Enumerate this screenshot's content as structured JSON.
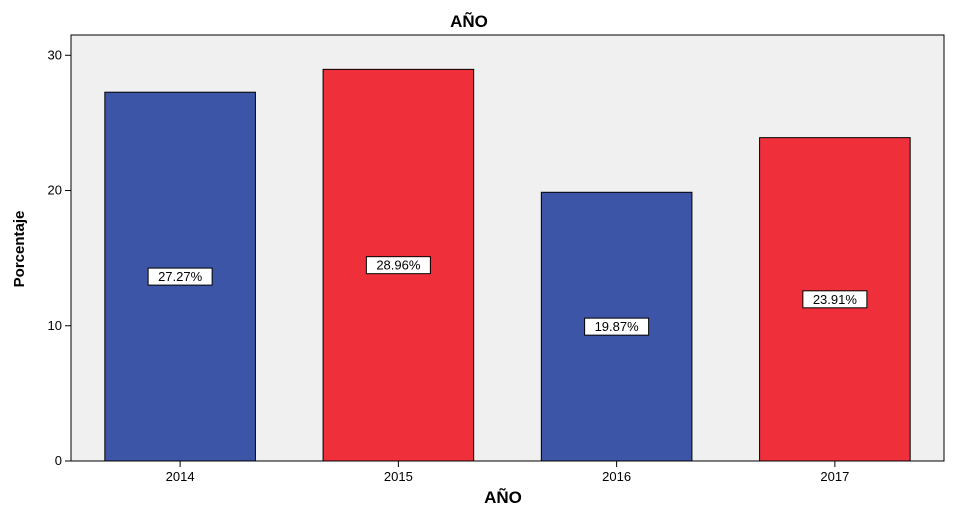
{
  "chart_data": {
    "type": "bar",
    "title": "AÑO",
    "xlabel": "AÑO",
    "ylabel": "Porcentaje",
    "categories": [
      "2014",
      "2015",
      "2016",
      "2017"
    ],
    "values": [
      27.27,
      28.96,
      19.87,
      23.91
    ],
    "data_labels": [
      "27.27%",
      "28.96%",
      "19.87%",
      "23.91%"
    ],
    "bar_colors": [
      "#3c55a7",
      "#ef303a",
      "#3c55a7",
      "#ef303a"
    ],
    "ylim": [
      0,
      31.5
    ],
    "yticks": [
      0,
      10,
      20,
      30
    ],
    "grid": false,
    "legend": "none"
  }
}
